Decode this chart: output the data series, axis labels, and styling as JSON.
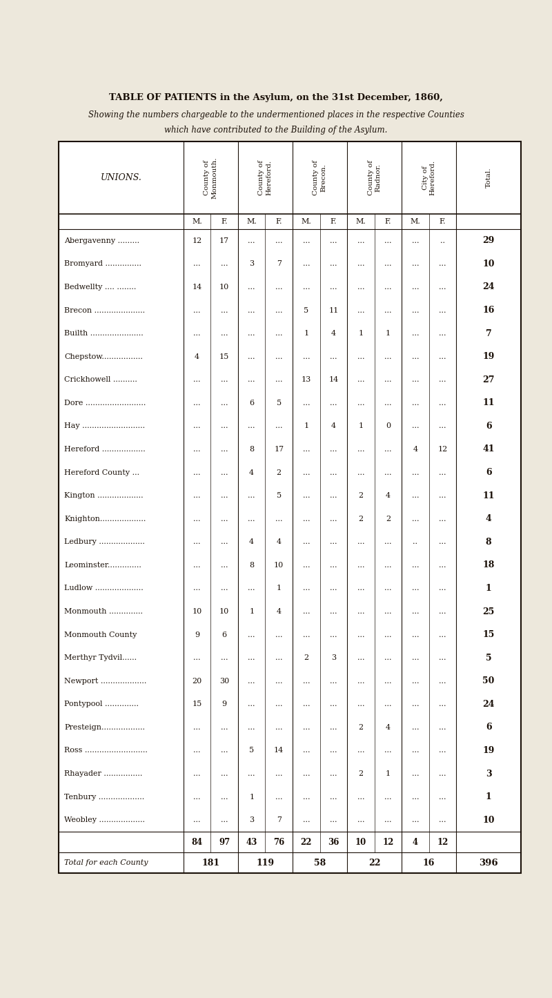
{
  "title1": "TABLE OF PATIENTS in the Asylum, on the 31st December, 1860,",
  "title2": "Showing the numbers chargeable to the undermentioned places in the respective Counties",
  "title3": "which have contributed to the Building of the Asylum.",
  "rows": [
    {
      "union": "Abergavenny .........",
      "mon_m": "12",
      "mon_f": "17",
      "her_m": "...",
      "her_f": "...",
      "bre_m": "...",
      "bre_f": "...",
      "rad_m": "...",
      "rad_f": "...",
      "city_m": "...",
      "city_f": "..",
      "total": "29"
    },
    {
      "union": "Bromyard ...............",
      "mon_m": "...",
      "mon_f": "...",
      "her_m": "3",
      "her_f": "7",
      "bre_m": "...",
      "bre_f": "...",
      "rad_m": "...",
      "rad_f": "...",
      "city_m": "...",
      "city_f": "...",
      "total": "10"
    },
    {
      "union": "Bedwellty .... ........",
      "mon_m": "14",
      "mon_f": "10",
      "her_m": "...",
      "her_f": "...",
      "bre_m": "...",
      "bre_f": "...",
      "rad_m": "...",
      "rad_f": "...",
      "city_m": "...",
      "city_f": "...",
      "total": "24"
    },
    {
      "union": "Brecon .....................",
      "mon_m": "...",
      "mon_f": "...",
      "her_m": "...",
      "her_f": "...",
      "bre_m": "5",
      "bre_f": "11",
      "rad_m": "...",
      "rad_f": "...",
      "city_m": "...",
      "city_f": "...",
      "total": "16"
    },
    {
      "union": "Builth ......................",
      "mon_m": "...",
      "mon_f": "...",
      "her_m": "...",
      "her_f": "...",
      "bre_m": "1",
      "bre_f": "4",
      "rad_m": "1",
      "rad_f": "1",
      "city_m": "...",
      "city_f": "...",
      "total": "7"
    },
    {
      "union": "Chepstow.................",
      "mon_m": "4",
      "mon_f": "15",
      "her_m": "...",
      "her_f": "...",
      "bre_m": "...",
      "bre_f": "...",
      "rad_m": "...",
      "rad_f": "...",
      "city_m": "...",
      "city_f": "...",
      "total": "19"
    },
    {
      "union": "Crickhowell ..........",
      "mon_m": "...",
      "mon_f": "...",
      "her_m": "...",
      "her_f": "...",
      "bre_m": "13",
      "bre_f": "14",
      "rad_m": "...",
      "rad_f": "...",
      "city_m": "...",
      "city_f": "...",
      "total": "27"
    },
    {
      "union": "Dore .........................",
      "mon_m": "...",
      "mon_f": "...",
      "her_m": "6",
      "her_f": "5",
      "bre_m": "...",
      "bre_f": "...",
      "rad_m": "...",
      "rad_f": "...",
      "city_m": "...",
      "city_f": "...",
      "total": "11"
    },
    {
      "union": "Hay ..........................",
      "mon_m": "...",
      "mon_f": "...",
      "her_m": "...",
      "her_f": "...",
      "bre_m": "1",
      "bre_f": "4",
      "rad_m": "1",
      "rad_f": "0",
      "city_m": "...",
      "city_f": "...",
      "total": "6"
    },
    {
      "union": "Hereford ..................",
      "mon_m": "...",
      "mon_f": "...",
      "her_m": "8",
      "her_f": "17",
      "bre_m": "...",
      "bre_f": "...",
      "rad_m": "...",
      "rad_f": "...",
      "city_m": "4",
      "city_f": "12",
      "total": "41"
    },
    {
      "union": "Hereford County ...",
      "mon_m": "...",
      "mon_f": "...",
      "her_m": "4",
      "her_f": "2",
      "bre_m": "...",
      "bre_f": "...",
      "rad_m": "...",
      "rad_f": "...",
      "city_m": "...",
      "city_f": "...",
      "total": "6"
    },
    {
      "union": "Kington ...................",
      "mon_m": "...",
      "mon_f": "...",
      "her_m": "...",
      "her_f": "5",
      "bre_m": "...",
      "bre_f": "...",
      "rad_m": "2",
      "rad_f": "4",
      "city_m": "...",
      "city_f": "...",
      "total": "11"
    },
    {
      "union": "Knighton...................",
      "mon_m": "...",
      "mon_f": "...",
      "her_m": "...",
      "her_f": "...",
      "bre_m": "...",
      "bre_f": "...",
      "rad_m": "2",
      "rad_f": "2",
      "city_m": "...",
      "city_f": "...",
      "total": "4"
    },
    {
      "union": "Ledbury ...................",
      "mon_m": "...",
      "mon_f": "...",
      "her_m": "4",
      "her_f": "4",
      "bre_m": "...",
      "bre_f": "...",
      "rad_m": "...",
      "rad_f": "...",
      "city_m": "..",
      "city_f": "...",
      "total": "8"
    },
    {
      "union": "Leominster..............",
      "mon_m": "...",
      "mon_f": "...",
      "her_m": "8",
      "her_f": "10",
      "bre_m": "...",
      "bre_f": "...",
      "rad_m": "...",
      "rad_f": "...",
      "city_m": "...",
      "city_f": "...",
      "total": "18"
    },
    {
      "union": "Ludlow ....................",
      "mon_m": "...",
      "mon_f": "...",
      "her_m": "...",
      "her_f": "1",
      "bre_m": "...",
      "bre_f": "...",
      "rad_m": "...",
      "rad_f": "...",
      "city_m": "...",
      "city_f": "...",
      "total": "1"
    },
    {
      "union": "Monmouth ..............",
      "mon_m": "10",
      "mon_f": "10",
      "her_m": "1",
      "her_f": "4",
      "bre_m": "...",
      "bre_f": "...",
      "rad_m": "...",
      "rad_f": "...",
      "city_m": "...",
      "city_f": "...",
      "total": "25"
    },
    {
      "union": "Monmouth County",
      "mon_m": "9",
      "mon_f": "6",
      "her_m": "...",
      "her_f": "...",
      "bre_m": "...",
      "bre_f": "...",
      "rad_m": "...",
      "rad_f": "...",
      "city_m": "...",
      "city_f": "...",
      "total": "15"
    },
    {
      "union": "Merthyr Tydvil......",
      "mon_m": "...",
      "mon_f": "...",
      "her_m": "...",
      "her_f": "...",
      "bre_m": "2",
      "bre_f": "3",
      "rad_m": "...",
      "rad_f": "...",
      "city_m": "...",
      "city_f": "...",
      "total": "5"
    },
    {
      "union": "Newport ...................",
      "mon_m": "20",
      "mon_f": "30",
      "her_m": "...",
      "her_f": "...",
      "bre_m": "...",
      "bre_f": "...",
      "rad_m": "...",
      "rad_f": "...",
      "city_m": "...",
      "city_f": "...",
      "total": "50"
    },
    {
      "union": "Pontypool ..............",
      "mon_m": "15",
      "mon_f": "9",
      "her_m": "...",
      "her_f": "...",
      "bre_m": "...",
      "bre_f": "...",
      "rad_m": "...",
      "rad_f": "...",
      "city_m": "...",
      "city_f": "...",
      "total": "24"
    },
    {
      "union": "Presteign..................",
      "mon_m": "...",
      "mon_f": "...",
      "her_m": "...",
      "her_f": "...",
      "bre_m": "...",
      "bre_f": "...",
      "rad_m": "2",
      "rad_f": "4",
      "city_m": "...",
      "city_f": "...",
      "total": "6"
    },
    {
      "union": "Ross ..........................",
      "mon_m": "...",
      "mon_f": "...",
      "her_m": "5",
      "her_f": "14",
      "bre_m": "...",
      "bre_f": "...",
      "rad_m": "...",
      "rad_f": "...",
      "city_m": "...",
      "city_f": "...",
      "total": "19"
    },
    {
      "union": "Rhayader ................",
      "mon_m": "...",
      "mon_f": "...",
      "her_m": "...",
      "her_f": "...",
      "bre_m": "...",
      "bre_f": "...",
      "rad_m": "2",
      "rad_f": "1",
      "city_m": "...",
      "city_f": "...",
      "total": "3"
    },
    {
      "union": "Tenbury ...................",
      "mon_m": "...",
      "mon_f": "...",
      "her_m": "1",
      "her_f": "...",
      "bre_m": "...",
      "bre_f": "...",
      "rad_m": "...",
      "rad_f": "...",
      "city_m": "...",
      "city_f": "...",
      "total": "1"
    },
    {
      "union": "Weobley ...................",
      "mon_m": "...",
      "mon_f": "...",
      "her_m": "3",
      "her_f": "7",
      "bre_m": "...",
      "bre_f": "...",
      "rad_m": "...",
      "rad_f": "...",
      "city_m": "...",
      "city_f": "...",
      "total": "10"
    }
  ],
  "totals_row": [
    "84",
    "97",
    "43",
    "76",
    "22",
    "36",
    "10",
    "12",
    "4",
    "12"
  ],
  "county_totals": [
    "181",
    "119",
    "58",
    "22",
    "16",
    "396"
  ],
  "bg_color": "#ede8dc",
  "text_color": "#1a1008",
  "line_color": "#1a1008"
}
